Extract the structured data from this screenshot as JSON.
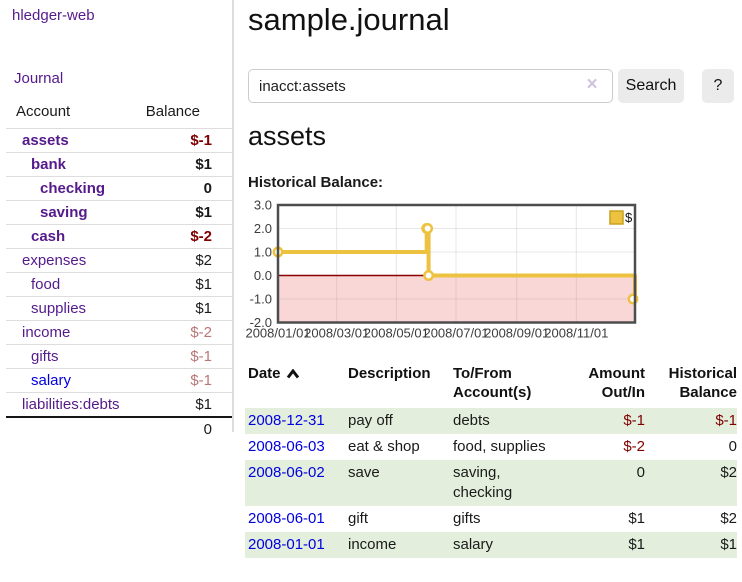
{
  "colors": {
    "link_purple": "#551a8b",
    "link_blue": "#0000e0",
    "negative_red": "#800000",
    "negative_soft_red": "#b97676",
    "row_green": "#e3efdc",
    "chart_gold": "#edc240",
    "chart_negative_bg": "#f9d7d7",
    "chart_zero_line": "#8b0000"
  },
  "app": {
    "title": "hledger-web"
  },
  "sidebar": {
    "journal_label": "Journal",
    "accounts_table": {
      "headers": [
        "Account",
        "Balance"
      ],
      "rows": [
        {
          "name": "assets",
          "depth": 1,
          "emph": true,
          "link": "visited",
          "balance": "$-1",
          "balance_style": "neg"
        },
        {
          "name": "bank",
          "depth": 2,
          "emph": true,
          "link": "visited",
          "balance": "$1",
          "balance_style": "plain"
        },
        {
          "name": "checking",
          "depth": 3,
          "emph": true,
          "link": "visited",
          "balance": "0",
          "balance_style": "plain"
        },
        {
          "name": "saving",
          "depth": 3,
          "emph": true,
          "link": "visited",
          "balance": "$1",
          "balance_style": "plain"
        },
        {
          "name": "cash",
          "depth": 2,
          "emph": true,
          "link": "visited",
          "balance": "$-2",
          "balance_style": "neg"
        },
        {
          "name": "expenses",
          "depth": 1,
          "emph": false,
          "link": "visited",
          "balance": "$2",
          "balance_style": "plain"
        },
        {
          "name": "food",
          "depth": 2,
          "emph": false,
          "link": "visited",
          "balance": "$1",
          "balance_style": "plain"
        },
        {
          "name": "supplies",
          "depth": 2,
          "emph": false,
          "link": "visited",
          "balance": "$1",
          "balance_style": "plain"
        },
        {
          "name": "income",
          "depth": 1,
          "emph": false,
          "link": "visited",
          "balance": "$-2",
          "balance_style": "neg-soft"
        },
        {
          "name": "gifts",
          "depth": 2,
          "emph": false,
          "link": "visited",
          "balance": "$-1",
          "balance_style": "neg-soft"
        },
        {
          "name": "salary",
          "depth": 2,
          "emph": false,
          "link": "unvisited",
          "balance": "$-1",
          "balance_style": "neg-soft"
        },
        {
          "name": "liabilities:debts",
          "depth": 1,
          "emph": false,
          "link": "visited",
          "balance": "$1",
          "balance_style": "plain"
        }
      ],
      "total": "0"
    }
  },
  "main": {
    "title": "sample.journal",
    "search": {
      "value": "inacct:assets",
      "clear_glyph": "×",
      "button_label": "Search",
      "help_label": "?"
    },
    "account_heading": "assets",
    "chart_label": "Historical Balance:"
  },
  "chart_data": {
    "type": "line",
    "title": "Historical Balance",
    "step": true,
    "x_range": [
      "2008-01-01",
      "2008-12-31"
    ],
    "ylim": [
      -2,
      3
    ],
    "y_ticks": [
      3.0,
      2.0,
      1.0,
      0.0,
      -1.0,
      -2.0
    ],
    "x_ticks": [
      {
        "date": "2008-01-01",
        "label": "2008/01/01"
      },
      {
        "date": "2008-03-01",
        "label": "2008/03/01"
      },
      {
        "date": "2008-05-01",
        "label": "2008/05/01"
      },
      {
        "date": "2008-07-01",
        "label": "2008/07/01"
      },
      {
        "date": "2008-09-01",
        "label": "2008/09/01"
      },
      {
        "date": "2008-11-01",
        "label": "2008/11/01"
      }
    ],
    "series": [
      {
        "name": "$",
        "color": "#edc240",
        "points": [
          [
            "2008-01-01",
            1
          ],
          [
            "2008-06-01",
            2
          ],
          [
            "2008-06-02",
            2
          ],
          [
            "2008-06-03",
            0
          ],
          [
            "2008-12-31",
            -1
          ]
        ]
      }
    ],
    "legend_position": "top-right",
    "grid": true,
    "negative_region_color": "#f9d7d7",
    "zero_line_color": "#8b0000",
    "border_color": "#4d4d4d"
  },
  "register": {
    "headers": [
      {
        "label": "Date",
        "sort": "asc",
        "sort_icon": "chevron-up-icon"
      },
      {
        "label": "Description"
      },
      {
        "label": "To/From Account(s)"
      },
      {
        "label": "Amount Out/In",
        "align": "right"
      },
      {
        "label": "Historical Balance",
        "align": "right"
      }
    ],
    "rows": [
      {
        "date": "2008-12-31",
        "description": "pay off",
        "accounts": "debts",
        "amount": "$-1",
        "amount_style": "neg",
        "balance": "$-1",
        "balance_style": "neg"
      },
      {
        "date": "2008-06-03",
        "description": "eat & shop",
        "accounts": "food, supplies",
        "amount": "$-2",
        "amount_style": "neg",
        "balance": "0",
        "balance_style": "plain"
      },
      {
        "date": "2008-06-02",
        "description": "save",
        "accounts": "saving, checking",
        "amount": "0",
        "amount_style": "plain",
        "balance": "$2",
        "balance_style": "plain"
      },
      {
        "date": "2008-06-01",
        "description": "gift",
        "accounts": "gifts",
        "amount": "$1",
        "amount_style": "plain",
        "balance": "$2",
        "balance_style": "plain"
      },
      {
        "date": "2008-01-01",
        "description": "income",
        "accounts": "salary",
        "amount": "$1",
        "amount_style": "plain",
        "balance": "$1",
        "balance_style": "plain"
      }
    ]
  }
}
